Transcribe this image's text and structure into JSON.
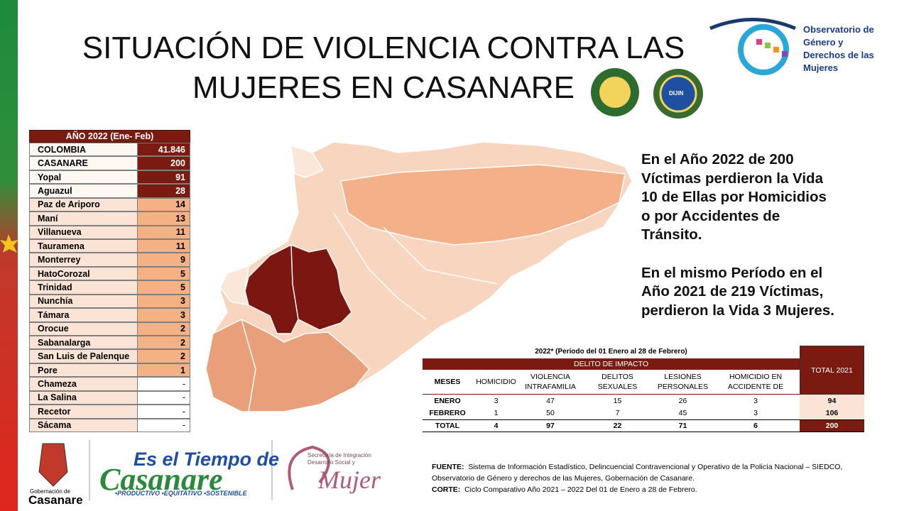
{
  "header": {
    "title_lines": [
      "SITUACIÓN DE VIOLENCIA CONTRA LAS",
      "MUJERES EN CASANARE"
    ]
  },
  "observatory_logo": {
    "lines": [
      "Observatorio de",
      "Género y",
      "Derechos de las",
      "Mujeres"
    ]
  },
  "badges": {
    "dijin": "DIJIN"
  },
  "municipal_table": {
    "header": "AÑO 2022  (Ene- Feb)",
    "rows": [
      [
        "COLOMBIA",
        "41.846"
      ],
      [
        "CASANARE",
        "200"
      ],
      [
        "Yopal",
        "91"
      ],
      [
        "Aguazul",
        "28"
      ],
      [
        "Paz de Ariporo",
        "14"
      ],
      [
        "Maní",
        "13"
      ],
      [
        "Villanueva",
        "11"
      ],
      [
        "Tauramena",
        "11"
      ],
      [
        "Monterrey",
        "9"
      ],
      [
        "HatoCorozal",
        "5"
      ],
      [
        "Trinidad",
        "5"
      ],
      [
        "Nunchía",
        "3"
      ],
      [
        "Támara",
        "3"
      ],
      [
        "Orocue",
        "2"
      ],
      [
        "Sabanalarga",
        "2"
      ],
      [
        "San Luis de Palenque",
        "2"
      ],
      [
        "Pore",
        "1"
      ],
      [
        "Chameza",
        "-"
      ],
      [
        "La Salina",
        "-"
      ],
      [
        "Recetor",
        "-"
      ],
      [
        "Sácama",
        "-"
      ]
    ]
  },
  "summary": {
    "paragraphs": [
      [
        "En el Año 2022 de 200",
        "Víctimas perdieron la Vida",
        "10 de Ellas por Homicidios",
        "o por Accidentes de",
        "Tránsito."
      ],
      [
        "En el mismo Período en el",
        "Año 2021 de 219 Víctimas,",
        "perdieron la Vida 3 Mujeres."
      ]
    ]
  },
  "impact_table": {
    "caption": "2022* (Período del 01 Enero al 28 de Febrero)",
    "group_header": "DELITO DE IMPACTO",
    "total_header": "TOTAL 2021",
    "columns": [
      "MESES",
      "HOMICIDIO",
      "VIOLENCIA INTRAFAMILIA",
      "DELITOS SEXUALES",
      "LESIONES PERSONALES",
      "HOMICIDIO EN ACCIDENTE DE"
    ],
    "rows": [
      [
        "ENERO",
        "3",
        "47",
        "15",
        "26",
        "3",
        "94"
      ],
      [
        "FEBRERO",
        "1",
        "50",
        "7",
        "45",
        "3",
        "106"
      ],
      [
        "TOTAL",
        "4",
        "97",
        "22",
        "71",
        "6",
        "200"
      ]
    ]
  },
  "footer": {
    "source_label": "FUENTE:",
    "source_text": "Sistema de Información Estadístico, Delincuencial Contravencional y Operativo de la Policía Nacional – SIEDCO, Observatorio de Género y derechos de las Mujeres, Gobernación de Casanare.",
    "cut_label": "CORTE:",
    "cut_text": "Ciclo Comparativo Año 2021 – 2022 Del 01 de Enero a 28 de Febrero.",
    "logos": {
      "gobernacion_small": "Gobernación de",
      "gobernacion_big": "Casanare",
      "campaign_top": "Es el Tiempo de",
      "campaign_main": "Casanare",
      "campaign_tagline": "•PRODUCTIVO •EQUITATIVO •SOSTENIBLE",
      "secretaria": "Secretaría de Integración Desarrollo Social y",
      "mujer": "Mujer"
    }
  }
}
